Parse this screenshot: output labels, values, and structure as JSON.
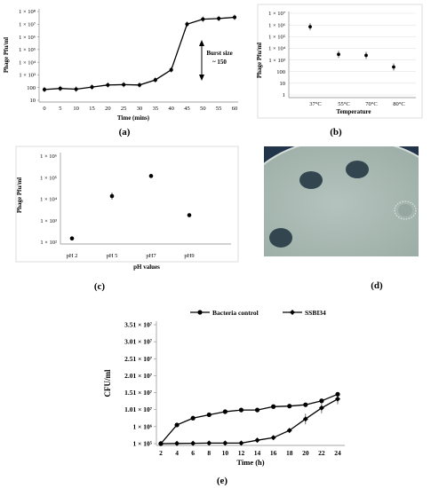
{
  "chart_data": [
    {
      "id": "a",
      "type": "line",
      "panel_label": "(a)",
      "xlabel": "Time (mins)",
      "ylabel": "Phage Pfu/ml",
      "scale": "log",
      "ylim": [
        10,
        100000000
      ],
      "y_tick_labels": [
        "10",
        "100",
        "1 × 10³",
        "1 × 10⁴",
        "1 × 10⁵",
        "1 × 10⁶",
        "1 × 10⁷",
        "1 × 10⁸"
      ],
      "x": [
        0,
        5,
        10,
        15,
        20,
        25,
        30,
        35,
        40,
        45,
        50,
        55,
        60
      ],
      "x_tick_labels": [
        "0",
        "5",
        "10",
        "15",
        "20",
        "25",
        "30",
        "35",
        "40",
        "45",
        "50",
        "55",
        "60"
      ],
      "values": [
        70,
        85,
        75,
        110,
        160,
        170,
        160,
        400,
        2500,
        10000000,
        25000000,
        28000000,
        35000000
      ],
      "annotation": "Burst size\n~ 150",
      "grid": false
    },
    {
      "id": "b",
      "type": "scatter",
      "panel_label": "(b)",
      "xlabel": "Temperature",
      "ylabel": "Phage Pfu/ml",
      "scale": "log",
      "ylim": [
        1,
        10000000
      ],
      "y_tick_labels": [
        "1",
        "10",
        "100",
        "1 × 10³",
        "1 × 10⁴",
        "1 × 10⁵",
        "1 × 10⁶",
        "1 × 10⁷"
      ],
      "categories": [
        "37°C",
        "55°C",
        "70°C",
        "80°C"
      ],
      "values": [
        700000,
        3000,
        2500,
        250
      ],
      "grid": true
    },
    {
      "id": "c",
      "type": "scatter",
      "panel_label": "(c)",
      "xlabel": "pH values",
      "ylabel": "Phage Pfu/ml",
      "scale": "log",
      "ylim": [
        100,
        1000000
      ],
      "y_tick_labels": [
        "1 × 10²",
        "1 × 10³",
        "1 × 10⁴",
        "1 × 10⁵",
        "1 × 10⁶"
      ],
      "categories": [
        "pH 2",
        "pH 5",
        "pH7",
        "pH9"
      ],
      "values": [
        150,
        14000,
        120000,
        1800
      ],
      "grid": false
    },
    {
      "id": "e",
      "type": "line",
      "panel_label": "(e)",
      "xlabel": "Time (h)",
      "ylabel": "CFU/ml",
      "x": [
        2,
        4,
        6,
        8,
        10,
        12,
        14,
        16,
        18,
        20,
        22,
        24
      ],
      "x_tick_labels": [
        "2",
        "4",
        "6",
        "8",
        "10",
        "12",
        "14",
        "16",
        "18",
        "20",
        "22",
        "24"
      ],
      "y_tick_labels": [
        "1 × 10⁵",
        "1 × 10⁶",
        "1.01 × 10⁷",
        "1.51 × 10⁷",
        "2.01 × 10⁷",
        "2.51 × 10⁷",
        "3.01 × 10⁷",
        "3.51 × 10⁷"
      ],
      "legend_position": "top",
      "series": [
        {
          "name": "Bacteria control",
          "marker": "circle",
          "values": [
            0.0,
            1.1,
            1.5,
            1.7,
            1.88,
            1.98,
            1.98,
            2.18,
            2.21,
            2.29,
            2.52,
            2.91
          ]
        },
        {
          "name": "SSBI34",
          "marker": "diamond",
          "values": [
            0.0,
            0.01,
            0.02,
            0.03,
            0.03,
            0.03,
            0.2,
            0.35,
            0.78,
            1.45,
            2.1,
            2.63
          ]
        }
      ],
      "y_units_note_index": [
        "1 × 10⁵",
        "1 × 10⁶",
        "1.01 × 10⁷",
        "1.51 × 10⁷",
        "2.01 × 10⁷",
        "2.51 × 10⁷",
        "3.01 × 10⁷",
        "3.51 × 10⁷"
      ]
    }
  ],
  "photo": {
    "panel_label": "(d)",
    "colors": {
      "agar": "#a7b7b0",
      "plate_bg": "#22344a",
      "plaque": "#33464f"
    }
  }
}
